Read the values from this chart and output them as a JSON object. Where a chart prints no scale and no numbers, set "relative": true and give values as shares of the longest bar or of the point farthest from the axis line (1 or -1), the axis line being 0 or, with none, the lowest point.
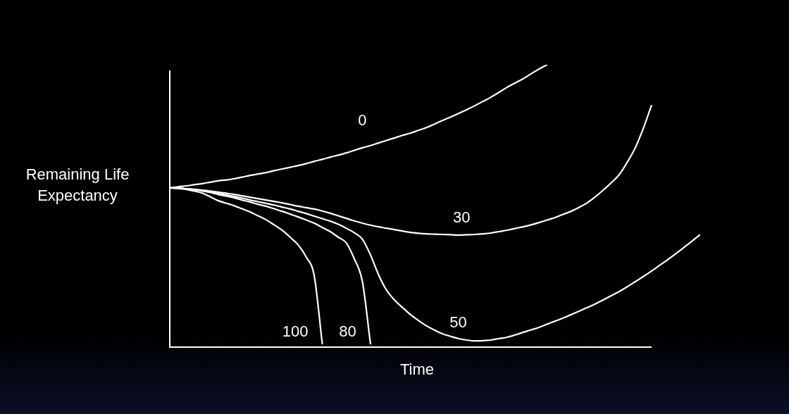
{
  "chart_data": {
    "type": "line",
    "relative": true,
    "xlabel": "Time",
    "ylabel": "Remaining Life Expectancy",
    "legend": false,
    "marker": "none",
    "line_style": "solid",
    "categories": [
      null,
      null,
      null,
      null,
      null,
      null,
      null,
      null,
      null,
      null,
      null,
      null,
      null,
      null,
      null,
      null,
      null,
      null,
      null,
      null,
      null,
      null,
      null,
      null,
      null,
      null,
      null,
      null,
      null,
      null,
      null,
      null,
      null,
      null,
      null,
      null,
      null,
      null,
      null,
      null,
      null,
      null,
      null,
      null,
      null,
      null,
      null,
      null,
      null,
      null,
      null,
      null,
      null,
      null,
      null,
      null,
      null,
      null,
      null,
      null,
      null,
      null,
      null,
      null,
      null,
      null,
      null
    ],
    "series": [
      {
        "name": "0",
        "color": "#ffffff",
        "values": [
          0.564,
          0.568,
          0.571,
          0.575,
          0.579,
          0.584,
          0.589,
          0.592,
          0.596,
          0.602,
          0.608,
          0.613,
          0.618,
          0.625,
          0.631,
          0.637,
          0.643,
          0.65,
          0.658,
          0.665,
          0.673,
          0.68,
          0.688,
          0.697,
          0.706,
          0.714,
          0.723,
          0.732,
          0.741,
          0.75,
          0.758,
          0.768,
          0.778,
          0.79,
          0.803,
          0.815,
          0.828,
          0.841,
          0.855,
          0.87,
          0.885,
          0.902,
          0.92,
          0.935,
          0.95,
          0.968,
          0.985,
          1.0,
          null,
          null,
          null,
          null,
          null,
          null,
          null,
          null,
          null,
          null,
          null,
          null,
          null,
          null,
          null,
          null,
          null,
          null,
          null
        ]
      },
      {
        "name": "30",
        "color": "#ffffff",
        "values": [
          0.564,
          0.563,
          0.561,
          0.559,
          0.556,
          0.553,
          0.549,
          0.545,
          0.541,
          0.536,
          0.531,
          0.526,
          0.521,
          0.516,
          0.511,
          0.505,
          0.499,
          0.494,
          0.489,
          0.482,
          0.474,
          0.465,
          0.456,
          0.447,
          0.439,
          0.432,
          0.426,
          0.421,
          0.416,
          0.411,
          0.406,
          0.403,
          0.401,
          0.4,
          0.399,
          0.398,
          0.397,
          0.398,
          0.399,
          0.401,
          0.404,
          0.409,
          0.414,
          0.42,
          0.426,
          0.433,
          0.441,
          0.45,
          0.459,
          0.47,
          0.481,
          0.495,
          0.511,
          0.532,
          0.556,
          0.582,
          0.611,
          0.655,
          0.706,
          0.775,
          0.855,
          null,
          null,
          null,
          null,
          null,
          null
        ]
      },
      {
        "name": "50",
        "color": "#ffffff",
        "values": [
          0.564,
          0.563,
          0.561,
          0.558,
          0.554,
          0.549,
          0.544,
          0.539,
          0.534,
          0.528,
          0.521,
          0.515,
          0.509,
          0.503,
          0.496,
          0.489,
          0.481,
          0.473,
          0.464,
          0.455,
          0.446,
          0.435,
          0.421,
          0.405,
          0.382,
          0.327,
          0.257,
          0.202,
          0.167,
          0.14,
          0.115,
          0.094,
          0.075,
          0.06,
          0.047,
          0.038,
          0.03,
          0.025,
          0.022,
          0.023,
          0.025,
          0.03,
          0.035,
          0.043,
          0.052,
          0.061,
          0.07,
          0.081,
          0.092,
          0.103,
          0.115,
          0.127,
          0.14,
          0.153,
          0.167,
          0.182,
          0.197,
          0.214,
          0.232,
          0.25,
          0.269,
          0.289,
          0.309,
          0.33,
          0.352,
          0.374,
          0.397
        ]
      },
      {
        "name": "80",
        "color": "#ffffff",
        "values": [
          0.564,
          0.563,
          0.561,
          0.558,
          0.554,
          0.548,
          0.541,
          0.535,
          0.529,
          0.521,
          0.514,
          0.506,
          0.499,
          0.49,
          0.481,
          0.471,
          0.461,
          0.45,
          0.439,
          0.424,
          0.409,
          0.389,
          0.369,
          0.312,
          0.232,
          0.012,
          null,
          null,
          null,
          null,
          null,
          null,
          null,
          null,
          null,
          null,
          null,
          null,
          null,
          null,
          null,
          null,
          null,
          null,
          null,
          null,
          null,
          null,
          null,
          null,
          null,
          null,
          null,
          null,
          null,
          null,
          null,
          null,
          null,
          null,
          null,
          null,
          null,
          null,
          null,
          null,
          null
        ]
      },
      {
        "name": "100",
        "color": "#ffffff",
        "values": [
          0.564,
          0.562,
          0.559,
          0.553,
          0.546,
          0.533,
          0.519,
          0.51,
          0.501,
          0.49,
          0.479,
          0.465,
          0.451,
          0.433,
          0.414,
          0.389,
          0.362,
          0.319,
          0.252,
          0.012,
          null,
          null,
          null,
          null,
          null,
          null,
          null,
          null,
          null,
          null,
          null,
          null,
          null,
          null,
          null,
          null,
          null,
          null,
          null,
          null,
          null,
          null,
          null,
          null,
          null,
          null,
          null,
          null,
          null,
          null,
          null,
          null,
          null,
          null,
          null,
          null,
          null,
          null,
          null,
          null,
          null,
          null,
          null,
          null,
          null,
          null,
          null
        ]
      }
    ]
  }
}
